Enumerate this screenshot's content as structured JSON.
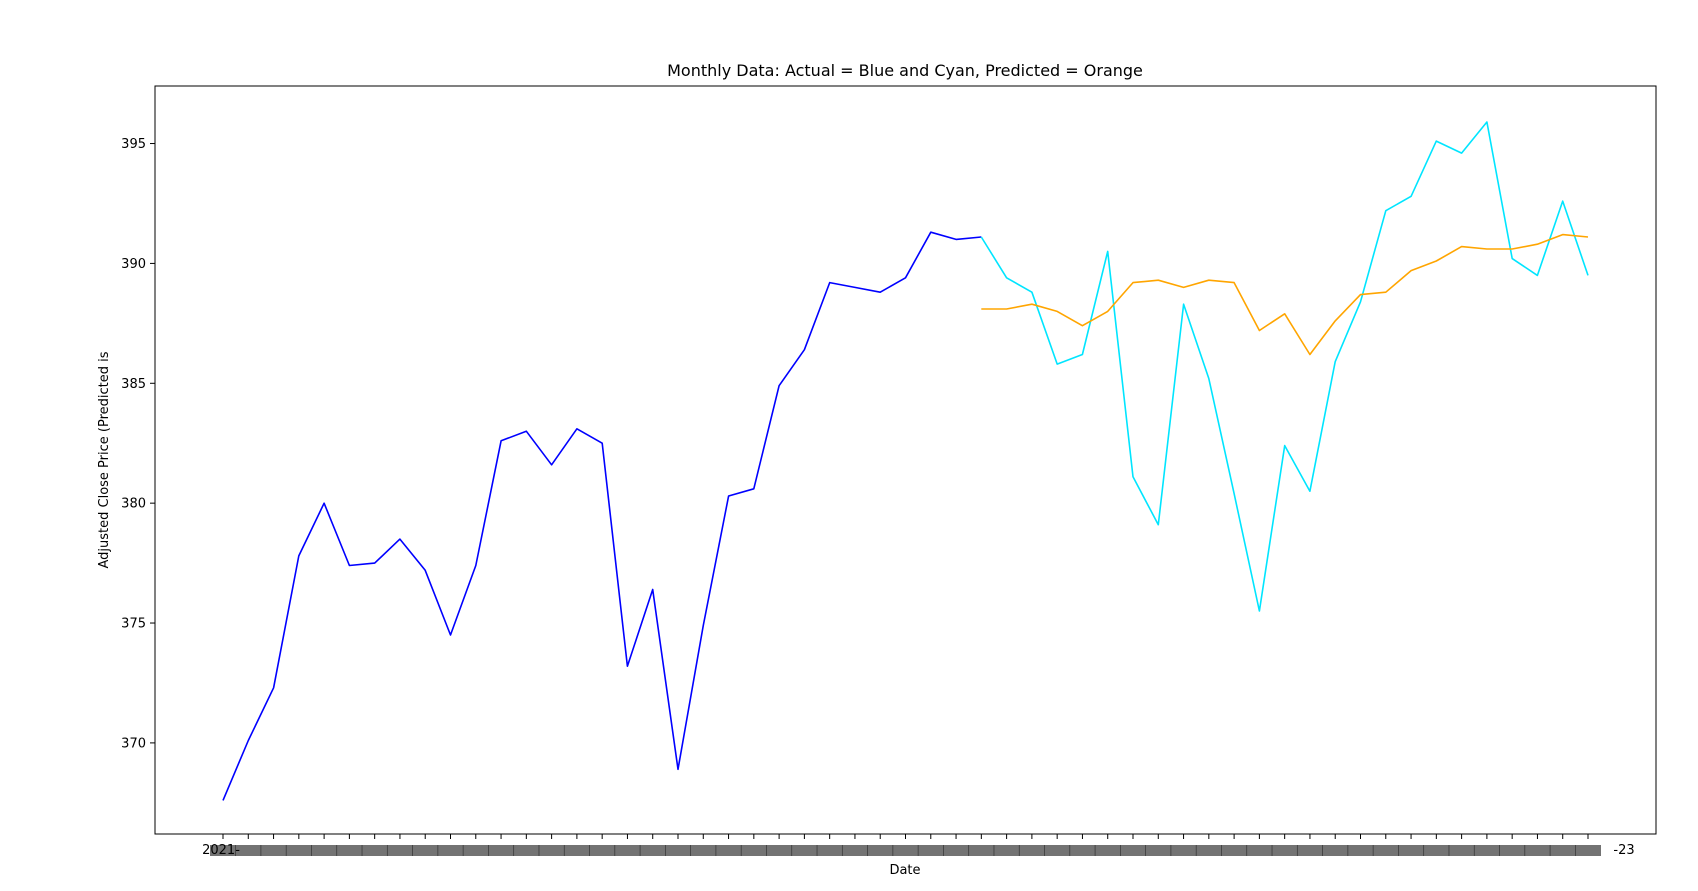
{
  "chart_data": {
    "type": "line",
    "title": "Monthly Data: Actual = Blue and Cyan, Predicted = Orange",
    "xlabel": "Date",
    "ylabel": "Adjusted Close Price (Predicted is",
    "ylim": [
      366.2,
      397.4
    ],
    "yticks": [
      370,
      375,
      380,
      385,
      390,
      395
    ],
    "grid": false,
    "x_tick_count": 55,
    "x_tick_label_start_fragment": "2021-",
    "x_tick_label_end_fragment": "-23",
    "series": [
      {
        "color": "#0000ff",
        "x_index_start": 0,
        "values": [
          367.6,
          370.1,
          372.3,
          377.8,
          380.0,
          377.4,
          377.5,
          378.5,
          377.2,
          374.5,
          377.4,
          382.6,
          383.0,
          381.6,
          383.1,
          382.5,
          373.2,
          376.4,
          368.9,
          374.9,
          380.3,
          380.6,
          384.9,
          386.4,
          389.2,
          389.0,
          388.8,
          389.4,
          391.3,
          391.0,
          391.1
        ]
      },
      {
        "color": "#00e5ff",
        "x_index_start": 30,
        "values": [
          391.1,
          389.4,
          388.8,
          385.8,
          386.2,
          390.5,
          381.1,
          379.1,
          388.3,
          385.2,
          380.4,
          375.5,
          382.4,
          380.5,
          385.9,
          388.4,
          392.2,
          392.8,
          395.1,
          394.6,
          395.9,
          390.2,
          389.5,
          392.6,
          389.5
        ]
      },
      {
        "color": "#ffa500",
        "x_index_start": 30,
        "values": [
          388.1,
          388.1,
          388.3,
          388.0,
          387.4,
          388.0,
          389.2,
          389.3,
          389.0,
          389.3,
          389.2,
          387.2,
          387.9,
          386.2,
          387.6,
          388.7,
          388.8,
          389.7,
          390.1,
          390.7,
          390.6,
          390.6,
          390.8,
          391.2,
          391.1
        ]
      }
    ]
  }
}
